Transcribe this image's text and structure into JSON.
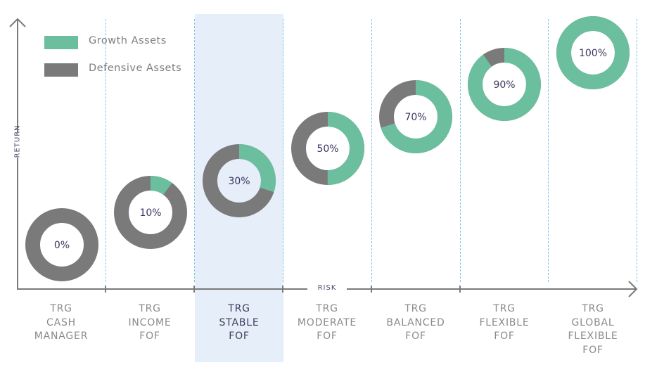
{
  "legend": {
    "items": [
      {
        "label": "Growth Assets",
        "color": "#6bbf9f"
      },
      {
        "label": "Defensive Assets",
        "color": "#7a7a7a"
      }
    ]
  },
  "axes": {
    "ylabel": "RETURN",
    "xlabel": "RISK"
  },
  "funds": [
    {
      "lines": [
        "TRG",
        "CASH",
        "MANAGER"
      ],
      "growth_pct": 0,
      "label": "0%"
    },
    {
      "lines": [
        "TRG",
        "INCOME",
        "FOF"
      ],
      "growth_pct": 10,
      "label": "10%"
    },
    {
      "lines": [
        "TRG",
        "STABLE",
        "FOF"
      ],
      "growth_pct": 30,
      "label": "30%",
      "highlighted": true
    },
    {
      "lines": [
        "TRG",
        "MODERATE",
        "FOF"
      ],
      "growth_pct": 50,
      "label": "50%"
    },
    {
      "lines": [
        "TRG",
        "BALANCED",
        "FOF"
      ],
      "growth_pct": 70,
      "label": "70%"
    },
    {
      "lines": [
        "TRG",
        "FLEXIBLE",
        "FOF"
      ],
      "growth_pct": 90,
      "label": "90%"
    },
    {
      "lines": [
        "TRG",
        "GLOBAL",
        "FLEXIBLE",
        "FOF"
      ],
      "growth_pct": 100,
      "label": "100%"
    }
  ],
  "colors": {
    "growth": "#6bbf9f",
    "defensive": "#7a7a7a",
    "highlight_bg": "#e6eef9",
    "divider": "#7cc3ea",
    "axis": "#7a7a7a"
  },
  "chart_data": {
    "type": "donut-series",
    "title": "",
    "xlabel": "RISK",
    "ylabel": "RETURN",
    "categories": [
      "TRG CASH MANAGER",
      "TRG INCOME FOF",
      "TRG STABLE FOF",
      "TRG MODERATE FOF",
      "TRG BALANCED FOF",
      "TRG FLEXIBLE FOF",
      "TRG GLOBAL FLEXIBLE FOF"
    ],
    "series": [
      {
        "name": "Growth Assets",
        "values": [
          0,
          10,
          30,
          50,
          70,
          90,
          100
        ]
      },
      {
        "name": "Defensive Assets",
        "values": [
          100,
          90,
          70,
          50,
          30,
          10,
          0
        ]
      }
    ],
    "highlighted_category": "TRG STABLE FOF",
    "legend_position": "top-left"
  }
}
